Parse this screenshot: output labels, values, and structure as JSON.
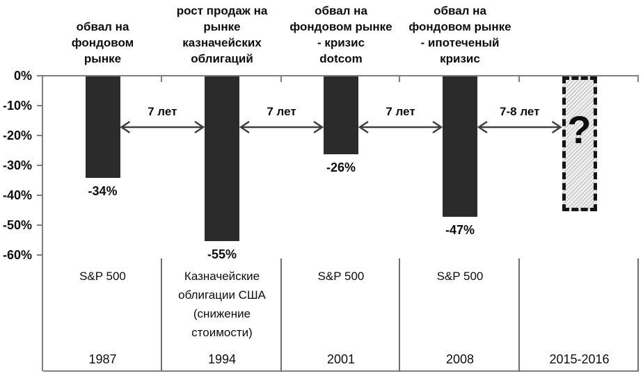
{
  "chart_data": {
    "type": "bar",
    "unit": "%",
    "ylim": [
      -60,
      0
    ],
    "grid": false,
    "legend": "none",
    "y_axis": {
      "ticks": [
        "0%",
        "-10%",
        "-20%",
        "-30%",
        "-40%",
        "-50%",
        "-60%"
      ]
    },
    "categories": [
      "1987",
      "1994",
      "2001",
      "2008",
      "2015-2016"
    ],
    "bars": [
      {
        "year": "1987",
        "instrument": "S&P 500",
        "value_pct": -34,
        "value_label": "-34%",
        "annotation": "обвал на\nфондовом\nрынке",
        "style": "solid"
      },
      {
        "year": "1994",
        "instrument": "Казначейские\nоблигации США\n(снижение\nстоимости)",
        "value_pct": -55,
        "value_label": "-55%",
        "annotation": "рост продаж на\nрынке\nказначейских\nоблигаций",
        "style": "solid"
      },
      {
        "year": "2001",
        "instrument": "S&P 500",
        "value_pct": -26,
        "value_label": "-26%",
        "annotation": "обвал на\nфондовом рынке\n- кризис\ndotcom",
        "style": "solid"
      },
      {
        "year": "2008",
        "instrument": "S&P 500",
        "value_pct": -47,
        "value_label": "-47%",
        "annotation": "обвал на\nфондовом рынке\n- ипотеченый\nкризис",
        "style": "solid"
      },
      {
        "year": "2015-2016",
        "instrument": "",
        "value_pct": null,
        "drawn_depth_pct": -45,
        "value_label": "?",
        "annotation": "",
        "style": "dashed-hatched"
      }
    ],
    "intervals": [
      {
        "from_index": 0,
        "to_index": 1,
        "label": "7 лет"
      },
      {
        "from_index": 1,
        "to_index": 2,
        "label": "7 лет"
      },
      {
        "from_index": 2,
        "to_index": 3,
        "label": "7 лет"
      },
      {
        "from_index": 3,
        "to_index": 4,
        "label": "7-8 лет"
      }
    ],
    "colors": {
      "bar": "#2b2b2b",
      "axis": "#7f7f7f",
      "separator": "#6e6e6e",
      "arrow": "#3f3f3f",
      "text": "#0d0d0d",
      "dashed_border": "#161616",
      "hatch_line": "#b9b9b9",
      "hatch_bg": "#efefef"
    }
  }
}
